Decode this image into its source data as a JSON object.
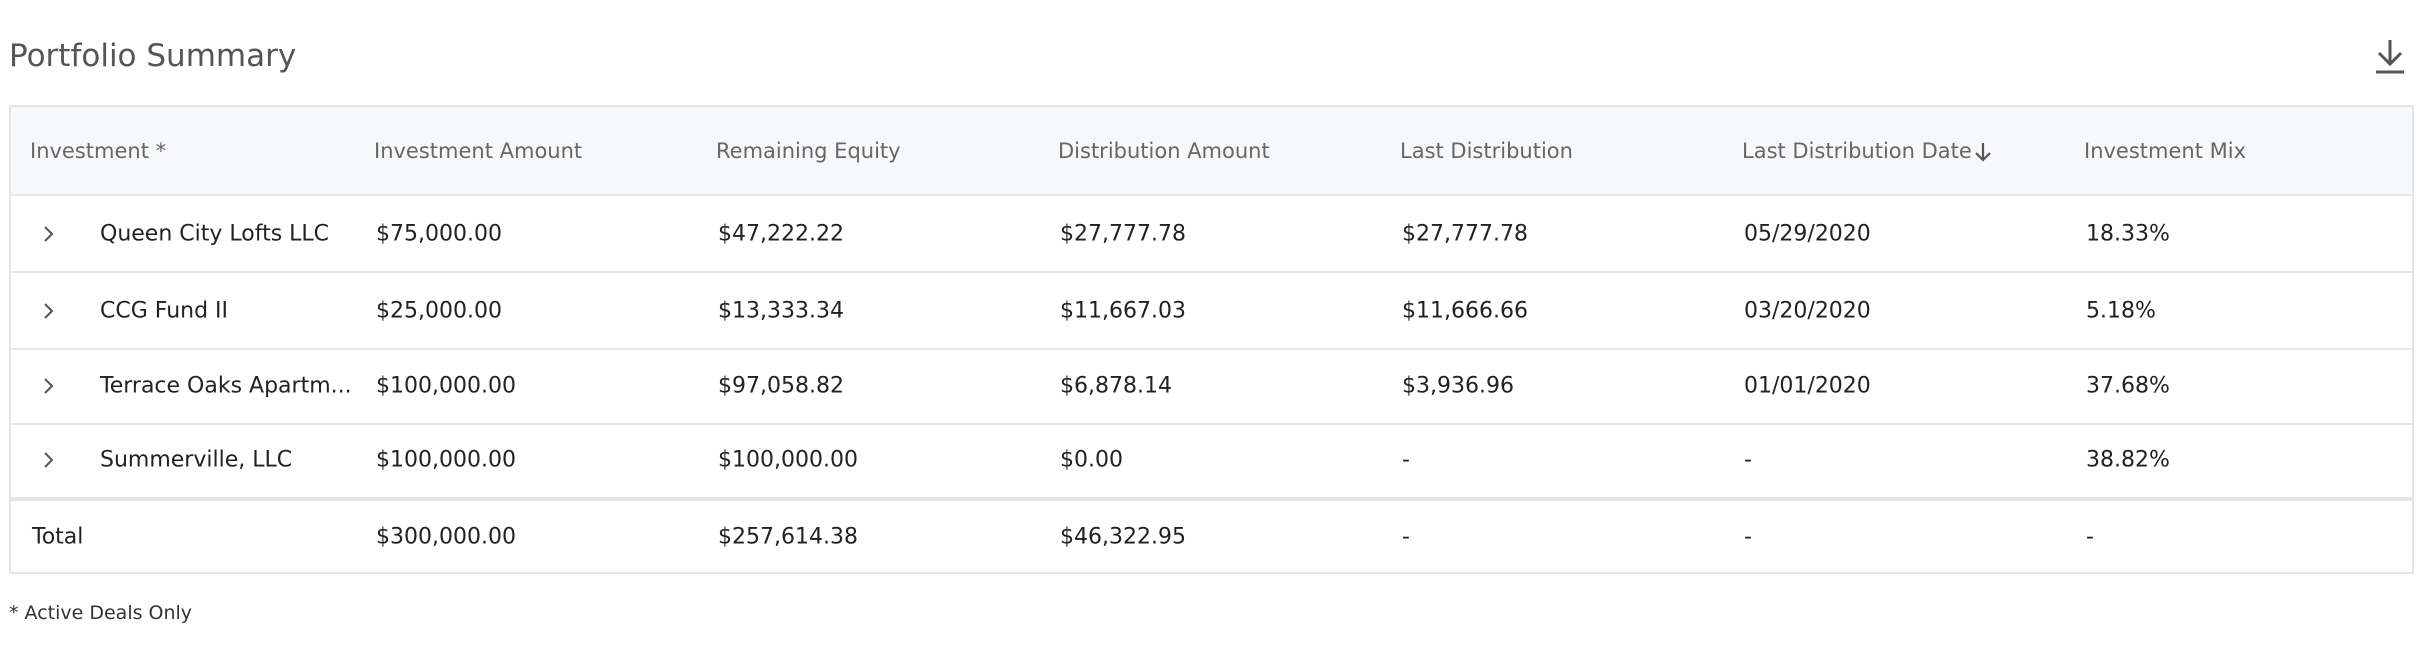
{
  "header": {
    "title": "Portfolio Summary"
  },
  "table": {
    "columns": [
      "Investment *",
      "Investment Amount",
      "Remaining Equity",
      "Distribution Amount",
      "Last Distribution",
      "Last Distribution Date",
      "Investment Mix"
    ],
    "rows": [
      [
        "Queen City Lofts LLC",
        "$75,000.00",
        "$47,222.22",
        "$27,777.78",
        "$27,777.78",
        "05/29/2020",
        "18.33%"
      ],
      [
        "CCG Fund II",
        "$25,000.00",
        "$13,333.34",
        "$11,667.03",
        "$11,666.66",
        "03/20/2020",
        "5.18%"
      ],
      [
        "Terrace Oaks Apartm...",
        "$100,000.00",
        "$97,058.82",
        "$6,878.14",
        "$3,936.96",
        "01/01/2020",
        "37.68%"
      ],
      [
        "Summerville, LLC",
        "$100,000.00",
        "$100,000.00",
        "$0.00",
        "-",
        "-",
        "38.82%"
      ]
    ],
    "total": [
      "Total",
      "$300,000.00",
      "$257,614.38",
      "$46,322.95",
      "-",
      "-",
      "-"
    ]
  },
  "footnote": "* Active Deals Only"
}
